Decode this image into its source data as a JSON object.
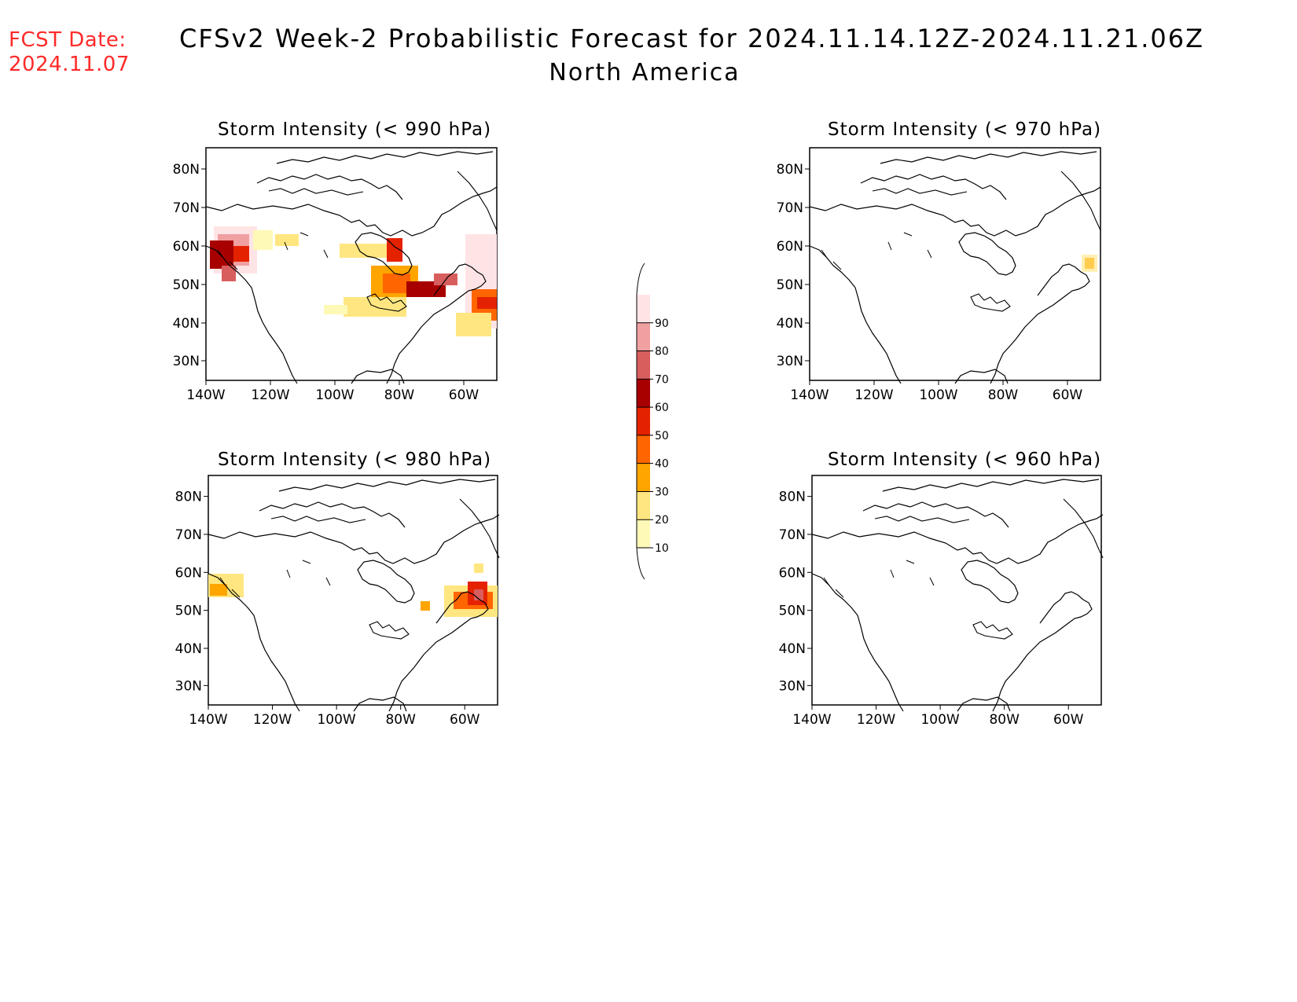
{
  "header": {
    "fcst_label": "FCST Date:",
    "fcst_date": "2024.11.07",
    "title": "CFSv2 Week-2 Probabilistic Forecast for 2024.11.14.12Z-2024.11.21.06Z",
    "subtitle": "North America"
  },
  "panels": [
    {
      "title": "Storm Intensity (< 990 hPa)"
    },
    {
      "title": "Storm Intensity (< 970 hPa)"
    },
    {
      "title": "Storm Intensity (< 980 hPa)"
    },
    {
      "title": "Storm Intensity (< 960 hPa)"
    }
  ],
  "axes": {
    "lat_labels": [
      "80N",
      "70N",
      "60N",
      "50N",
      "40N",
      "30N"
    ],
    "lon_labels": [
      "140W",
      "120W",
      "100W",
      "80W",
      "60W"
    ]
  },
  "colorbar": {
    "levels": [
      "10",
      "20",
      "30",
      "40",
      "50",
      "60",
      "70",
      "80",
      "90"
    ],
    "colors": [
      "#fff9b8",
      "#ffe680",
      "#ffa500",
      "#ff6600",
      "#e52200",
      "#a80000",
      "#d85e5e",
      "#f0a0a0",
      "#ffe4e6"
    ]
  }
}
